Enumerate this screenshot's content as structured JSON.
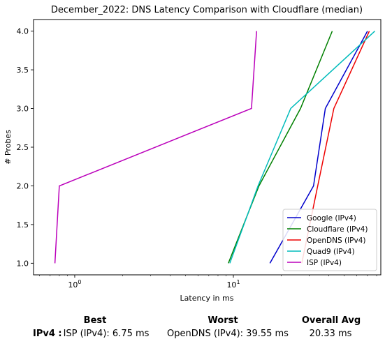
{
  "chart_data": {
    "type": "line",
    "title": "December_2022: DNS Latency Comparison with Cloudflare (median)",
    "xlabel": "Latency in ms",
    "ylabel": "# Probes",
    "xscale": "log",
    "xlim": [
      0.55,
      85
    ],
    "ylim": [
      0.85,
      4.15
    ],
    "xticks": [
      {
        "value": 1,
        "base": "10",
        "exp": "0"
      },
      {
        "value": 10,
        "base": "10",
        "exp": "1"
      }
    ],
    "yticks": [
      "1.0",
      "1.5",
      "2.0",
      "2.5",
      "3.0",
      "3.5",
      "4.0"
    ],
    "legend_position": "lower-right",
    "series": [
      {
        "name": "Google (IPv4)",
        "color": "#0000cc",
        "points": [
          [
            17,
            1
          ],
          [
            32,
            2
          ],
          [
            38,
            3
          ],
          [
            70,
            4
          ]
        ]
      },
      {
        "name": "Cloudflare (IPv4)",
        "color": "#008000",
        "points": [
          [
            9.3,
            1
          ],
          [
            14.5,
            2
          ],
          [
            26.5,
            3
          ],
          [
            42,
            4
          ]
        ]
      },
      {
        "name": "OpenDNS (IPv4)",
        "color": "#ee0000",
        "points": [
          [
            27,
            1
          ],
          [
            34,
            2
          ],
          [
            43,
            3
          ],
          [
            72,
            4
          ]
        ]
      },
      {
        "name": "Quad9 (IPv4)",
        "color": "#00bbbb",
        "points": [
          [
            9.5,
            1
          ],
          [
            14.3,
            2
          ],
          [
            23,
            3
          ],
          [
            78,
            4
          ]
        ]
      },
      {
        "name": "ISP (IPv4)",
        "color": "#bb00bb",
        "points": [
          [
            0.75,
            1
          ],
          [
            0.8,
            2
          ],
          [
            13,
            3
          ],
          [
            14,
            4
          ]
        ]
      }
    ]
  },
  "summary": {
    "headers": {
      "best": "Best",
      "worst": "Worst",
      "avg": "Overall Avg"
    },
    "row_label": "IPv4 :",
    "best": "ISP (IPv4): 6.75 ms",
    "worst": "OpenDNS (IPv4): 39.55 ms",
    "avg": "20.33 ms"
  }
}
